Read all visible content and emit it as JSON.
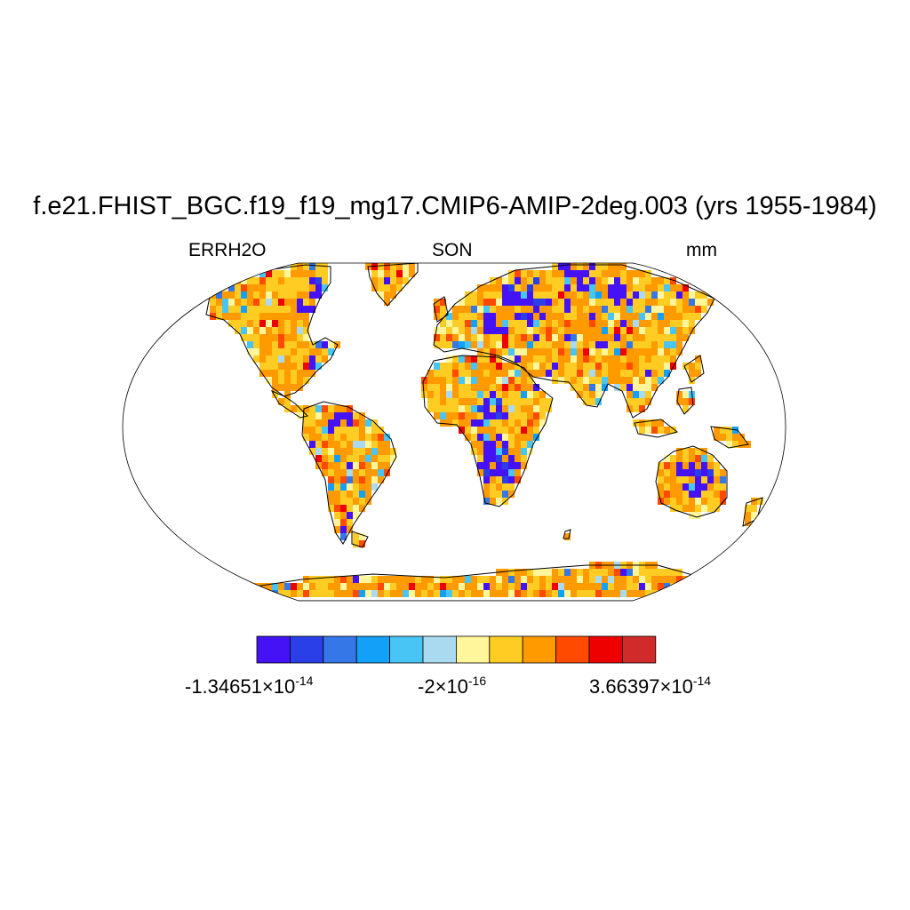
{
  "title": "f.e21.FHIST_BGC.f19_f19_mg17.CMIP6-AMIP-2deg.003 (yrs 1955-1984)",
  "left_label": "ERRH2O",
  "center_label": "SON",
  "right_label": "mm",
  "projection": "Robinson",
  "colorbar": {
    "colors": [
      "#4412f4",
      "#2a3fe8",
      "#3577e6",
      "#12a0f8",
      "#48c5f4",
      "#a9daf0",
      "#fff59a",
      "#ffcc24",
      "#ff9a00",
      "#ff4a00",
      "#ee0000",
      "#d12a2a"
    ],
    "labels": {
      "min": {
        "mantissa": "-1.34651",
        "times": "×10",
        "exp": "-14"
      },
      "mid": {
        "mantissa": "-2",
        "times": "×10",
        "exp": "-16"
      },
      "max": {
        "mantissa": "3.66397",
        "times": "×10",
        "exp": "-14"
      }
    }
  }
}
